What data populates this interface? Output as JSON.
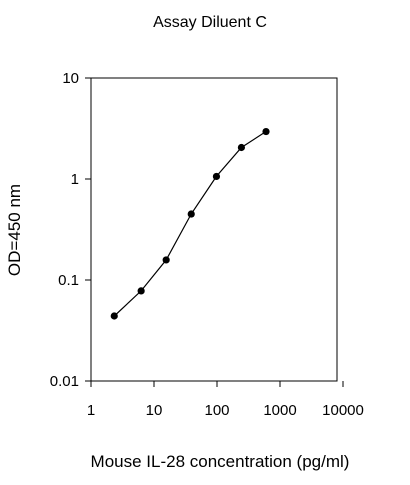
{
  "chart_data": {
    "type": "line",
    "title": "Assay Diluent C",
    "xlabel": "Mouse IL-28 concentration (pg/ml)",
    "ylabel": "OD=450 nm",
    "x_scale": "log",
    "y_scale": "log",
    "xlim": [
      1,
      10000
    ],
    "ylim": [
      0.01,
      10
    ],
    "x_ticks": [
      1,
      10,
      100,
      1000,
      10000
    ],
    "x_tick_labels": [
      "1",
      "10",
      "100",
      "1000",
      "10000"
    ],
    "y_ticks": [
      0.01,
      0.1,
      1,
      10
    ],
    "y_tick_labels": [
      "0.01",
      "0.1",
      "1",
      "10"
    ],
    "grid": false,
    "legend": false,
    "series": [
      {
        "x": [
          2.34,
          6.25,
          15.6,
          39,
          98,
          244,
          600
        ],
        "y": [
          0.044,
          0.078,
          0.158,
          0.45,
          1.06,
          2.05,
          2.95
        ],
        "marker": "circle",
        "color": "#000000"
      }
    ]
  }
}
